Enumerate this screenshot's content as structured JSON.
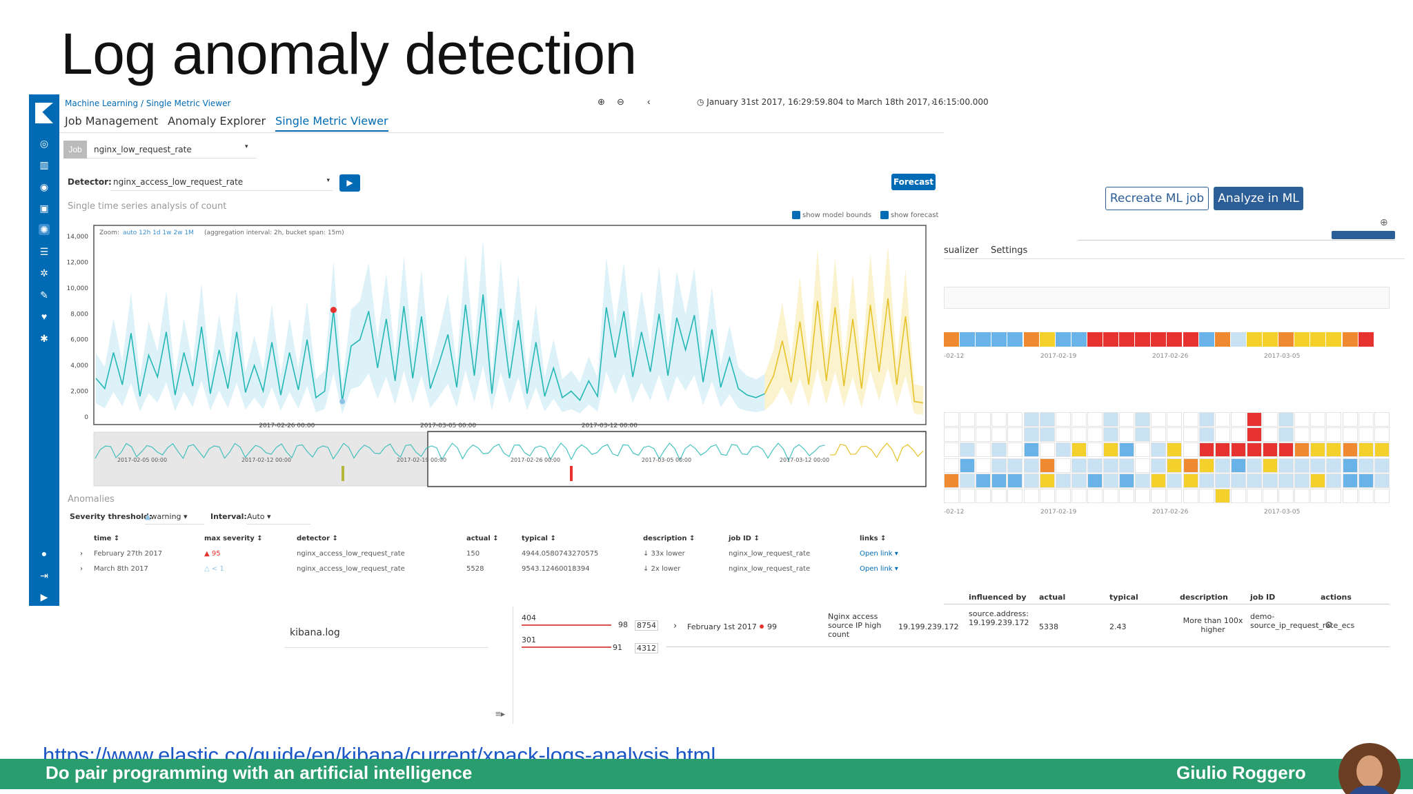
{
  "slide": {
    "title": "Log anomaly detection",
    "link": "https://www.elastic.co/guide/en/kibana/current/xpack-logs-analysis.html",
    "footer_left": "Do pair programming with an artificial intelligence",
    "footer_right": "Giulio Roggero"
  },
  "back_ui": {
    "recreate_button": "Recreate ML job",
    "analyze_button": "Analyze in ML",
    "tab_visualizer": "sualizer",
    "tab_settings": "Settings",
    "date_labels": [
      "-02-12",
      "2017-02-19",
      "2017-02-26",
      "2017-03-05"
    ],
    "log_name": "kibana.log",
    "counts": [
      {
        "code": "404",
        "value": "98",
        "total": "8754"
      },
      {
        "code": "301",
        "value": "91",
        "total": "4312"
      }
    ],
    "table": {
      "headers": [
        "influenced by",
        "actual",
        "typical",
        "description",
        "job ID",
        "actions"
      ],
      "row": {
        "time": "February 1st 2017",
        "score": "99",
        "detector": "Nginx access source IP high count",
        "ip": "19.199.239.172",
        "influenced": "source.address: 19.199.239.172",
        "actual": "5338",
        "typical": "2.43",
        "description": "More than 100x higher",
        "job_id": "demo-source_ip_request_rate_ecs"
      }
    }
  },
  "kibana": {
    "breadcrumb": [
      "Machine Learning",
      "Single Metric Viewer"
    ],
    "tabs": [
      "Job Management",
      "Anomaly Explorer",
      "Single Metric Viewer"
    ],
    "time_range": "January 31st 2017, 16:29:59.804 to March 18th 2017, 16:15:00.000",
    "job_tag": "Job",
    "job_value": "nginx_low_request_rate",
    "detector_label": "Detector:",
    "detector_value": "nginx_access_low_request_rate",
    "forecast_button": "Forecast",
    "series_title": "Single time series analysis of count",
    "show_model_bounds": "show model bounds",
    "show_forecast": "show forecast",
    "zoom_label": "Zoom:",
    "zoom_options": "auto 12h 1d 1w 2w 1M",
    "zoom_info": "(aggregation interval: 2h, bucket span: 15m)",
    "anomalies_title": "Anomalies",
    "severity_label": "Severity threshold:",
    "severity_value": "warning",
    "interval_label": "Interval:",
    "interval_value": "Auto",
    "table_headers": [
      "time",
      "max severity",
      "detector",
      "actual",
      "typical",
      "description",
      "job ID",
      "links"
    ],
    "rows": [
      {
        "time": "February 27th 2017",
        "severity": "95",
        "detector": "nginx_access_low_request_rate",
        "actual": "150",
        "typical": "4944.0580743270575",
        "description": "33x lower",
        "job": "nginx_low_request_rate",
        "links": "Open link"
      },
      {
        "time": "March 8th 2017",
        "severity": "< 1",
        "detector": "nginx_access_low_request_rate",
        "actual": "5528",
        "typical": "9543.12460018394",
        "description": "2x lower",
        "job": "nginx_low_request_rate",
        "links": "Open link"
      }
    ]
  },
  "chart_data": {
    "type": "line",
    "ylim": [
      0,
      14000
    ],
    "yticks": [
      "14,000",
      "12,000",
      "10,000",
      "8,000",
      "6,000",
      "4,000",
      "2,000",
      "0"
    ],
    "xticks": [
      "2017-02-26 00:00",
      "2017-03-05 00:00",
      "2017-03-12 00:00"
    ],
    "nav_xticks": [
      "2017-02-05 00:00",
      "2017-02-12 00:00",
      "2017-02-19 00:00",
      "2017-02-26 00:00",
      "2017-03-05 00:00",
      "2017-03-12 00:00"
    ],
    "series": [
      {
        "name": "actual",
        "color": "#24b7b4",
        "values": [
          3000,
          2200,
          5000,
          2500,
          6500,
          1600,
          4800,
          3100,
          6600,
          1700,
          5000,
          2400,
          7000,
          1800,
          5200,
          2200,
          6600,
          1900,
          4000,
          2000,
          5800,
          1700,
          5000,
          2100,
          6000,
          1500,
          2000,
          8300,
          1200,
          5500,
          6000,
          8200,
          3800,
          7600,
          2800,
          8600,
          3000,
          7800,
          2200,
          4200,
          6400,
          2300,
          8700,
          3200,
          9500,
          1800,
          8400,
          3000,
          7500,
          1800,
          5800,
          1600,
          3800,
          1500,
          2000,
          1300,
          2800,
          1600,
          8500,
          4600,
          8200,
          3100,
          6600,
          3500,
          8000,
          3200,
          7700,
          5200,
          7900,
          2700,
          6800,
          2300,
          4600,
          2200,
          1700,
          1500,
          1800
        ]
      },
      {
        "name": "forecast",
        "color": "#e6c229",
        "values": [
          1800,
          3200,
          5900,
          2700,
          7400,
          2500,
          9000,
          2800,
          8500,
          2400,
          7600,
          2200,
          8700,
          3500,
          9200,
          2500,
          7800,
          1200,
          1100
        ]
      }
    ]
  }
}
